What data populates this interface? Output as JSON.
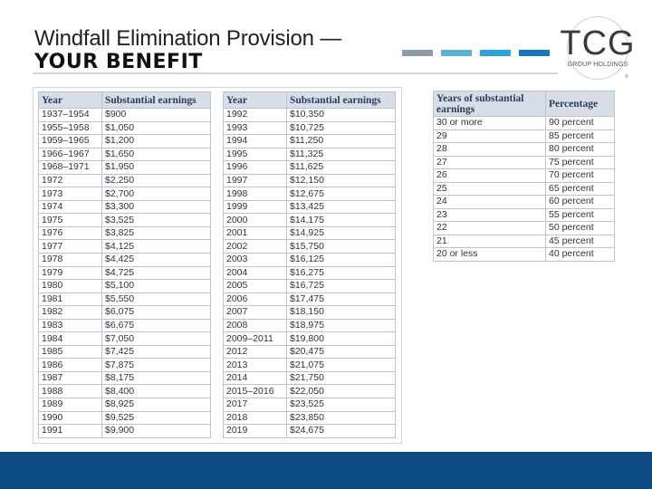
{
  "slide": {
    "title_line1": "Windfall Elimination Provision —",
    "title_line2": "YOUR BENEFIT"
  },
  "logo": {
    "text": "TCG",
    "subtitle": "GROUP HOLDINGS",
    "mark": "®"
  },
  "accent_colors": [
    "#8c9bab",
    "#5bb1d8",
    "#2aa6de",
    "#1577c0"
  ],
  "footer_color": "#0c4a80",
  "earnings_table": {
    "headers": [
      "Year",
      "Substantial earnings",
      "Year",
      "Substantial earnings"
    ],
    "left_rows": [
      {
        "year": "1937–1954",
        "earnings": "$900"
      },
      {
        "year": "1955–1958",
        "earnings": "$1,050"
      },
      {
        "year": "1959–1965",
        "earnings": "$1,200"
      },
      {
        "year": "1966–1967",
        "earnings": "$1,650"
      },
      {
        "year": "1968–1971",
        "earnings": "$1,950"
      },
      {
        "year": "1972",
        "earnings": "$2,250"
      },
      {
        "year": "1973",
        "earnings": "$2,700"
      },
      {
        "year": "1974",
        "earnings": "$3,300"
      },
      {
        "year": "1975",
        "earnings": "$3,525"
      },
      {
        "year": "1976",
        "earnings": "$3,825"
      },
      {
        "year": "1977",
        "earnings": "$4,125"
      },
      {
        "year": "1978",
        "earnings": "$4,425"
      },
      {
        "year": "1979",
        "earnings": "$4,725"
      },
      {
        "year": "1980",
        "earnings": "$5,100"
      },
      {
        "year": "1981",
        "earnings": "$5,550"
      },
      {
        "year": "1982",
        "earnings": "$6,075"
      },
      {
        "year": "1983",
        "earnings": "$6,675"
      },
      {
        "year": "1984",
        "earnings": "$7,050"
      },
      {
        "year": "1985",
        "earnings": "$7,425"
      },
      {
        "year": "1986",
        "earnings": "$7,875"
      },
      {
        "year": "1987",
        "earnings": "$8,175"
      },
      {
        "year": "1988",
        "earnings": "$8,400"
      },
      {
        "year": "1989",
        "earnings": "$8,925"
      },
      {
        "year": "1990",
        "earnings": "$9,525"
      },
      {
        "year": "1991",
        "earnings": "$9,900"
      }
    ],
    "right_rows": [
      {
        "year": "1992",
        "earnings": "$10,350"
      },
      {
        "year": "1993",
        "earnings": "$10,725"
      },
      {
        "year": "1994",
        "earnings": "$11,250"
      },
      {
        "year": "1995",
        "earnings": "$11,325"
      },
      {
        "year": "1996",
        "earnings": "$11,625"
      },
      {
        "year": "1997",
        "earnings": "$12,150"
      },
      {
        "year": "1998",
        "earnings": "$12,675"
      },
      {
        "year": "1999",
        "earnings": "$13,425"
      },
      {
        "year": "2000",
        "earnings": "$14,175"
      },
      {
        "year": "2001",
        "earnings": "$14,925"
      },
      {
        "year": "2002",
        "earnings": "$15,750"
      },
      {
        "year": "2003",
        "earnings": "$16,125"
      },
      {
        "year": "2004",
        "earnings": "$16,275"
      },
      {
        "year": "2005",
        "earnings": "$16,725"
      },
      {
        "year": "2006",
        "earnings": "$17,475"
      },
      {
        "year": "2007",
        "earnings": "$18,150"
      },
      {
        "year": "2008",
        "earnings": "$18,975"
      },
      {
        "year": "2009–2011",
        "earnings": "$19,800"
      },
      {
        "year": "2012",
        "earnings": "$20,475"
      },
      {
        "year": "2013",
        "earnings": "$21,075"
      },
      {
        "year": "2014",
        "earnings": "$21,750"
      },
      {
        "year": "2015–2016",
        "earnings": "$22,050"
      },
      {
        "year": "2017",
        "earnings": "$23,525"
      },
      {
        "year": "2018",
        "earnings": "$23,850"
      },
      {
        "year": "2019",
        "earnings": "$24,675"
      }
    ]
  },
  "percentage_table": {
    "headers": [
      "Years of substantial earnings",
      "Percentage"
    ],
    "rows": [
      {
        "years": "30 or more",
        "percentage": "90 percent"
      },
      {
        "years": "29",
        "percentage": "85 percent"
      },
      {
        "years": "28",
        "percentage": "80 percent"
      },
      {
        "years": "27",
        "percentage": "75 percent"
      },
      {
        "years": "26",
        "percentage": "70 percent"
      },
      {
        "years": "25",
        "percentage": "65 percent"
      },
      {
        "years": "24",
        "percentage": "60 percent"
      },
      {
        "years": "23",
        "percentage": "55 percent"
      },
      {
        "years": "22",
        "percentage": "50 percent"
      },
      {
        "years": "21",
        "percentage": "45 percent"
      },
      {
        "years": "20 or less",
        "percentage": "40 percent"
      }
    ]
  }
}
